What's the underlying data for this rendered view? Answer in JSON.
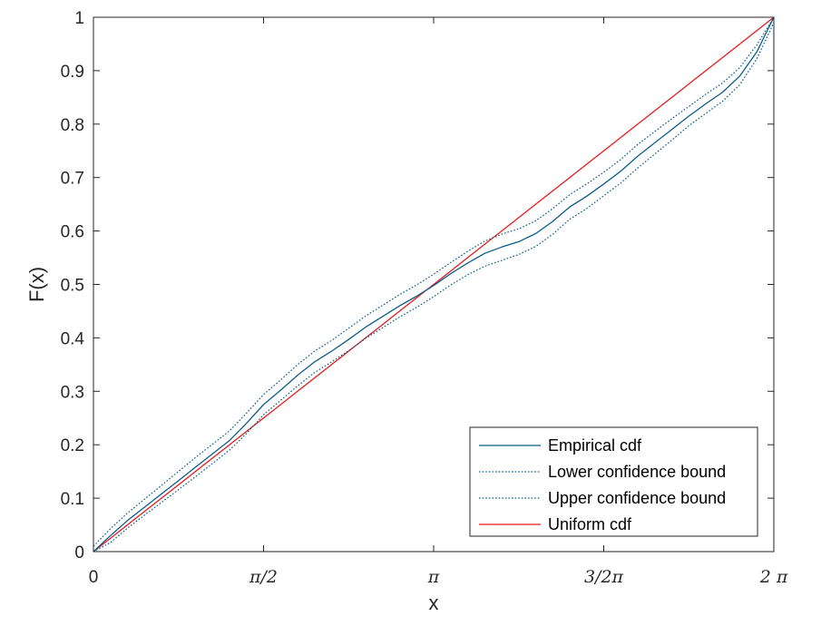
{
  "chart_data": {
    "type": "line",
    "title": "",
    "xlabel": "x",
    "ylabel": "F(x)",
    "xlim": [
      0,
      6.2832
    ],
    "ylim": [
      0,
      1
    ],
    "grid": false,
    "x_ticks": [
      {
        "value": 0,
        "label": "0"
      },
      {
        "value": 1.5708,
        "label": "π/2"
      },
      {
        "value": 3.1416,
        "label": "π"
      },
      {
        "value": 4.7124,
        "label": "3/2π"
      },
      {
        "value": 6.2832,
        "label": "2 π"
      }
    ],
    "y_ticks": [
      {
        "value": 0,
        "label": "0"
      },
      {
        "value": 0.1,
        "label": "0.1"
      },
      {
        "value": 0.2,
        "label": "0.2"
      },
      {
        "value": 0.3,
        "label": "0.3"
      },
      {
        "value": 0.4,
        "label": "0.4"
      },
      {
        "value": 0.5,
        "label": "0.5"
      },
      {
        "value": 0.6,
        "label": "0.6"
      },
      {
        "value": 0.7,
        "label": "0.7"
      },
      {
        "value": 0.8,
        "label": "0.8"
      },
      {
        "value": 0.9,
        "label": "0.9"
      },
      {
        "value": 1,
        "label": "1"
      }
    ],
    "legend_position": "bottom-right",
    "x": [
      0,
      0.1571,
      0.3142,
      0.4712,
      0.6283,
      0.7854,
      0.9425,
      1.0996,
      1.2566,
      1.4137,
      1.5708,
      1.7279,
      1.885,
      2.042,
      2.1991,
      2.3562,
      2.5133,
      2.6704,
      2.8274,
      2.9845,
      3.1416,
      3.2987,
      3.4558,
      3.6128,
      3.7699,
      3.927,
      4.0841,
      4.2412,
      4.3982,
      4.5553,
      4.7124,
      4.8695,
      5.0265,
      5.1836,
      5.3407,
      5.4978,
      5.6549,
      5.8119,
      5.969,
      6.1261,
      6.2832
    ],
    "series": [
      {
        "name": "Empirical cdf",
        "style": "solid",
        "color": "#0b5c8c",
        "values": [
          0.0,
          0.03,
          0.058,
          0.083,
          0.108,
          0.133,
          0.158,
          0.183,
          0.208,
          0.24,
          0.275,
          0.302,
          0.33,
          0.355,
          0.375,
          0.397,
          0.42,
          0.44,
          0.46,
          0.478,
          0.498,
          0.52,
          0.54,
          0.558,
          0.57,
          0.58,
          0.595,
          0.618,
          0.645,
          0.665,
          0.688,
          0.712,
          0.74,
          0.765,
          0.79,
          0.815,
          0.838,
          0.86,
          0.89,
          0.935,
          1.0
        ]
      },
      {
        "name": "Lower confidence bound",
        "style": "dotted",
        "color": "#0b5c8c",
        "values": [
          0.0,
          0.017,
          0.044,
          0.068,
          0.092,
          0.116,
          0.14,
          0.165,
          0.19,
          0.221,
          0.256,
          0.283,
          0.31,
          0.335,
          0.355,
          0.376,
          0.399,
          0.419,
          0.439,
          0.457,
          0.477,
          0.499,
          0.518,
          0.534,
          0.545,
          0.556,
          0.571,
          0.594,
          0.622,
          0.642,
          0.666,
          0.69,
          0.718,
          0.744,
          0.77,
          0.797,
          0.82,
          0.843,
          0.874,
          0.922,
          0.99
        ]
      },
      {
        "name": "Upper confidence bound",
        "style": "dotted",
        "color": "#0b5c8c",
        "values": [
          0.01,
          0.043,
          0.072,
          0.098,
          0.124,
          0.15,
          0.176,
          0.201,
          0.226,
          0.259,
          0.294,
          0.321,
          0.35,
          0.375,
          0.395,
          0.418,
          0.441,
          0.461,
          0.481,
          0.499,
          0.519,
          0.541,
          0.562,
          0.581,
          0.594,
          0.604,
          0.619,
          0.642,
          0.668,
          0.688,
          0.71,
          0.734,
          0.762,
          0.786,
          0.81,
          0.833,
          0.856,
          0.877,
          0.906,
          0.948,
          1.0
        ]
      },
      {
        "name": "Uniform cdf",
        "style": "solid",
        "color": "#e8191c",
        "values": [
          0.0,
          0.025,
          0.05,
          0.075,
          0.1,
          0.125,
          0.15,
          0.175,
          0.2,
          0.225,
          0.25,
          0.275,
          0.3,
          0.325,
          0.35,
          0.375,
          0.4,
          0.425,
          0.45,
          0.475,
          0.5,
          0.525,
          0.55,
          0.575,
          0.6,
          0.625,
          0.65,
          0.675,
          0.7,
          0.725,
          0.75,
          0.775,
          0.8,
          0.825,
          0.85,
          0.875,
          0.9,
          0.925,
          0.95,
          0.975,
          1.0
        ]
      }
    ]
  }
}
